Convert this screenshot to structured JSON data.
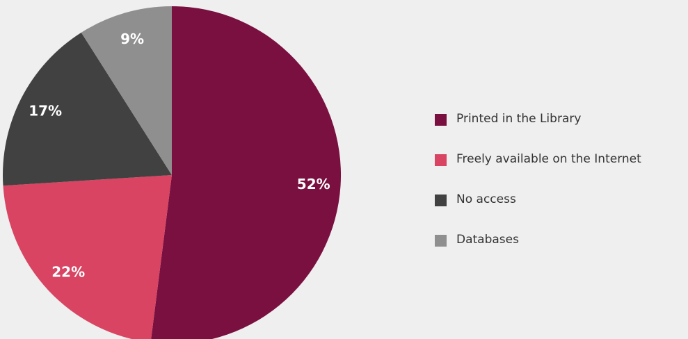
{
  "chart_data": {
    "type": "pie",
    "slices": [
      {
        "name": "Printed in the Library",
        "value": 52,
        "label": "52%",
        "color": "#7a1040"
      },
      {
        "name": "Freely available on the Internet",
        "value": 22,
        "label": "22%",
        "color": "#d84462"
      },
      {
        "name": "No access",
        "value": 17,
        "label": "17%",
        "color": "#414141"
      },
      {
        "name": "Databases",
        "value": 9,
        "label": "9%",
        "color": "#8f8f8f"
      }
    ],
    "legend_position": "right"
  }
}
